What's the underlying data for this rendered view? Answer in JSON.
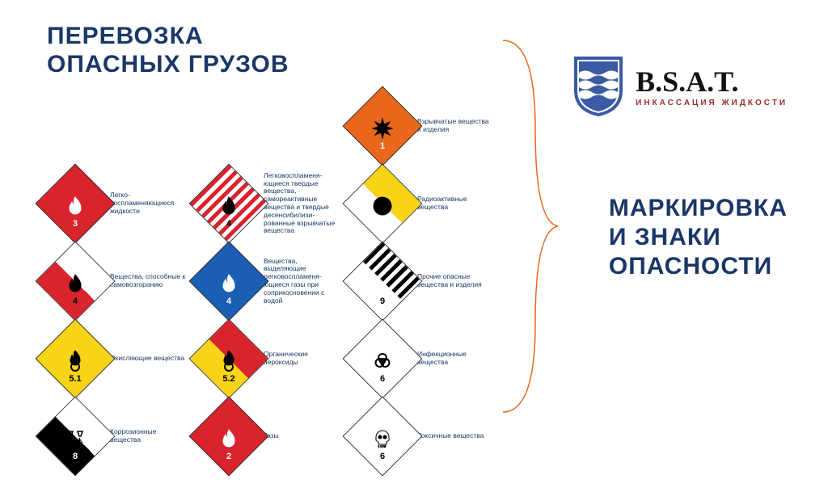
{
  "title_top": "ПЕРЕВОЗКА\nОПАСНЫХ ГРУЗОВ",
  "title_right": "МАРКИРОВКА\nИ ЗНАКИ\nОПАСНОСТИ",
  "logo": {
    "main": "B.S.A.T.",
    "sub": "ИНКАССАЦИЯ ЖИДКОСТИ",
    "shield_blue": "#3b5ba5",
    "shield_wave": "#ffffff"
  },
  "colors": {
    "navy": "#1a3768",
    "red": "#d9232d",
    "orange": "#e8671b",
    "blue": "#1b5fb5",
    "yellow": "#f7d417",
    "black": "#0b0b0b",
    "white": "#ffffff",
    "brace": "#e8671b"
  },
  "signs": [
    {
      "row": 0,
      "col": 2,
      "num": "1",
      "num_dark": false,
      "bg": "#e8671b",
      "label": "Взрывчатые вещества и изделия",
      "icon": "burst",
      "icon_color": "#000"
    },
    {
      "row": 1,
      "col": 0,
      "num": "3",
      "num_dark": false,
      "bg": "#d9232d",
      "label": "Легко-воспламеняющиеся жидкости",
      "icon": "flame",
      "icon_color": "#fff"
    },
    {
      "row": 1,
      "col": 1,
      "num": "4",
      "num_dark": true,
      "bg": "stripes",
      "label": "Легковоспламеня-ющиеся твердые вещества, самореактивные вещества и твердые десенсибилизи-рованные взрывчатые вещества",
      "icon": "flame",
      "icon_color": "#000"
    },
    {
      "row": 1,
      "col": 2,
      "num": "",
      "num_dark": true,
      "bg": "split-yw",
      "label": "Радиоактивные вещества",
      "icon": "radio",
      "icon_color": "#000"
    },
    {
      "row": 2,
      "col": 0,
      "num": "4",
      "num_dark": true,
      "bg": "split-wr",
      "label": "Вещества, способные к самовозгоранию",
      "icon": "flame",
      "icon_color": "#000"
    },
    {
      "row": 2,
      "col": 1,
      "num": "4",
      "num_dark": false,
      "bg": "#1b5fb5",
      "label": "Вещества, выделяющие легковоспламеня-ющиеся газы при соприкосновении с водой",
      "icon": "flame",
      "icon_color": "#fff"
    },
    {
      "row": 2,
      "col": 2,
      "num": "9",
      "num_dark": true,
      "bg": "split-stripes",
      "label": "Прочие опасные вещества и изделия",
      "icon": "none",
      "icon_color": "#000"
    },
    {
      "row": 3,
      "col": 0,
      "num": "5.1",
      "num_dark": true,
      "bg": "#f7d417",
      "label": "Окисляющие вещества",
      "icon": "flame-o",
      "icon_color": "#000"
    },
    {
      "row": 3,
      "col": 1,
      "num": "5.2",
      "num_dark": true,
      "bg": "split-ry",
      "label": "Органические пероксиды",
      "icon": "flame-o",
      "icon_color": "#000"
    },
    {
      "row": 3,
      "col": 2,
      "num": "6",
      "num_dark": true,
      "bg": "#ffffff",
      "label": "Инфекционные вещества",
      "icon": "biohazard",
      "icon_color": "#000"
    },
    {
      "row": 4,
      "col": 0,
      "num": "8",
      "num_dark": false,
      "bg": "split-wb",
      "label": "Коррозионные вещества",
      "icon": "corr",
      "icon_color": "#000"
    },
    {
      "row": 4,
      "col": 1,
      "num": "2",
      "num_dark": false,
      "bg": "#d9232d",
      "label": "Газы",
      "icon": "flame",
      "icon_color": "#fff"
    },
    {
      "row": 4,
      "col": 2,
      "num": "6",
      "num_dark": true,
      "bg": "#ffffff",
      "label": "Токсичные вещества",
      "icon": "skull",
      "icon_color": "#000"
    }
  ]
}
